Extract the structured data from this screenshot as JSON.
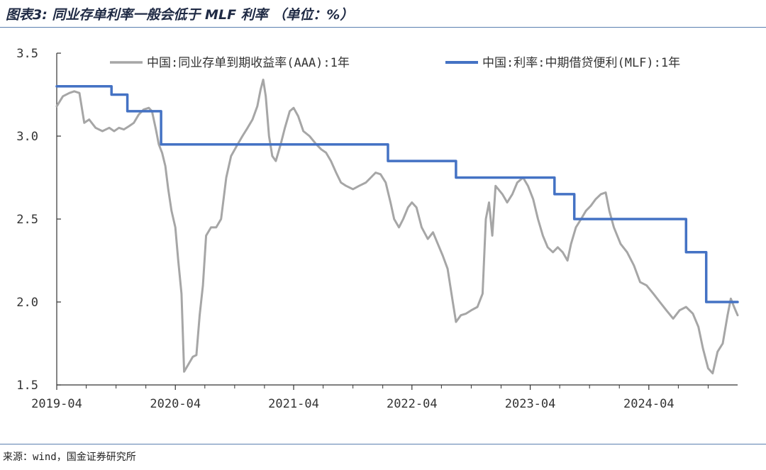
{
  "title": "图表3: 同业存单利率一般会低于 MLF 利率 （单位：%）",
  "source": "来源：wind，国金证券研究所",
  "chart_data": {
    "type": "line",
    "y_ticks": [
      "3.5",
      "3.0",
      "2.5",
      "2.0",
      "1.5"
    ],
    "x_ticks": [
      "2019-04",
      "2020-04",
      "2021-04",
      "2022-04",
      "2023-04",
      "2024-04"
    ],
    "ylim": [
      1.5,
      3.5
    ],
    "xlim": [
      "2019-04-01",
      "2024-12-31"
    ],
    "grid": false,
    "legend_position": "top",
    "series": [
      {
        "name": "中国:同业存单到期收益率(AAA):1年",
        "color": "#a6a6a6",
        "points": [
          [
            "2019-04-01",
            3.18
          ],
          [
            "2019-04-20",
            3.24
          ],
          [
            "2019-05-10",
            3.26
          ],
          [
            "2019-05-25",
            3.27
          ],
          [
            "2019-06-10",
            3.26
          ],
          [
            "2019-06-25",
            3.08
          ],
          [
            "2019-07-10",
            3.1
          ],
          [
            "2019-07-30",
            3.05
          ],
          [
            "2019-08-20",
            3.03
          ],
          [
            "2019-09-10",
            3.05
          ],
          [
            "2019-09-25",
            3.03
          ],
          [
            "2019-10-10",
            3.05
          ],
          [
            "2019-10-25",
            3.04
          ],
          [
            "2019-11-10",
            3.06
          ],
          [
            "2019-11-25",
            3.08
          ],
          [
            "2019-12-10",
            3.13
          ],
          [
            "2019-12-25",
            3.16
          ],
          [
            "2020-01-10",
            3.17
          ],
          [
            "2020-01-20",
            3.15
          ],
          [
            "2020-02-01",
            3.04
          ],
          [
            "2020-02-10",
            2.95
          ],
          [
            "2020-02-20",
            2.9
          ],
          [
            "2020-03-01",
            2.82
          ],
          [
            "2020-03-10",
            2.68
          ],
          [
            "2020-03-20",
            2.55
          ],
          [
            "2020-04-01",
            2.45
          ],
          [
            "2020-04-10",
            2.25
          ],
          [
            "2020-04-20",
            2.05
          ],
          [
            "2020-04-28",
            1.58
          ],
          [
            "2020-05-10",
            1.62
          ],
          [
            "2020-05-25",
            1.67
          ],
          [
            "2020-06-05",
            1.68
          ],
          [
            "2020-06-15",
            1.92
          ],
          [
            "2020-06-25",
            2.1
          ],
          [
            "2020-07-05",
            2.4
          ],
          [
            "2020-07-20",
            2.45
          ],
          [
            "2020-08-05",
            2.45
          ],
          [
            "2020-08-20",
            2.5
          ],
          [
            "2020-09-05",
            2.75
          ],
          [
            "2020-09-20",
            2.88
          ],
          [
            "2020-10-10",
            2.95
          ],
          [
            "2020-10-25",
            3.0
          ],
          [
            "2020-11-10",
            3.05
          ],
          [
            "2020-11-25",
            3.1
          ],
          [
            "2020-12-10",
            3.18
          ],
          [
            "2020-12-20",
            3.28
          ],
          [
            "2020-12-28",
            3.34
          ],
          [
            "2021-01-05",
            3.24
          ],
          [
            "2021-01-15",
            3.0
          ],
          [
            "2021-01-25",
            2.88
          ],
          [
            "2021-02-05",
            2.85
          ],
          [
            "2021-02-20",
            2.95
          ],
          [
            "2021-03-05",
            3.05
          ],
          [
            "2021-03-20",
            3.15
          ],
          [
            "2021-04-01",
            3.17
          ],
          [
            "2021-04-15",
            3.12
          ],
          [
            "2021-05-01",
            3.03
          ],
          [
            "2021-05-20",
            3.0
          ],
          [
            "2021-06-10",
            2.95
          ],
          [
            "2021-06-25",
            2.92
          ],
          [
            "2021-07-10",
            2.9
          ],
          [
            "2021-07-25",
            2.85
          ],
          [
            "2021-08-10",
            2.78
          ],
          [
            "2021-08-25",
            2.72
          ],
          [
            "2021-09-10",
            2.7
          ],
          [
            "2021-10-01",
            2.68
          ],
          [
            "2021-10-20",
            2.7
          ],
          [
            "2021-11-10",
            2.72
          ],
          [
            "2021-11-25",
            2.75
          ],
          [
            "2021-12-10",
            2.78
          ],
          [
            "2021-12-25",
            2.77
          ],
          [
            "2022-01-10",
            2.72
          ],
          [
            "2022-01-25",
            2.6
          ],
          [
            "2022-02-05",
            2.5
          ],
          [
            "2022-02-20",
            2.45
          ],
          [
            "2022-03-05",
            2.5
          ],
          [
            "2022-03-20",
            2.57
          ],
          [
            "2022-04-01",
            2.6
          ],
          [
            "2022-04-15",
            2.57
          ],
          [
            "2022-05-01",
            2.45
          ],
          [
            "2022-05-20",
            2.38
          ],
          [
            "2022-06-05",
            2.42
          ],
          [
            "2022-06-20",
            2.35
          ],
          [
            "2022-07-05",
            2.28
          ],
          [
            "2022-07-20",
            2.2
          ],
          [
            "2022-08-05",
            2.0
          ],
          [
            "2022-08-15",
            1.88
          ],
          [
            "2022-08-30",
            1.92
          ],
          [
            "2022-09-15",
            1.93
          ],
          [
            "2022-10-01",
            1.95
          ],
          [
            "2022-10-20",
            1.97
          ],
          [
            "2022-11-05",
            2.05
          ],
          [
            "2022-11-15",
            2.5
          ],
          [
            "2022-11-25",
            2.6
          ],
          [
            "2022-12-05",
            2.4
          ],
          [
            "2022-12-15",
            2.7
          ],
          [
            "2023-01-05",
            2.65
          ],
          [
            "2023-01-20",
            2.6
          ],
          [
            "2023-02-05",
            2.65
          ],
          [
            "2023-02-20",
            2.72
          ],
          [
            "2023-03-10",
            2.75
          ],
          [
            "2023-03-25",
            2.7
          ],
          [
            "2023-04-10",
            2.62
          ],
          [
            "2023-04-25",
            2.5
          ],
          [
            "2023-05-10",
            2.4
          ],
          [
            "2023-05-25",
            2.33
          ],
          [
            "2023-06-10",
            2.3
          ],
          [
            "2023-06-25",
            2.33
          ],
          [
            "2023-07-10",
            2.3
          ],
          [
            "2023-07-25",
            2.25
          ],
          [
            "2023-08-05",
            2.35
          ],
          [
            "2023-08-20",
            2.45
          ],
          [
            "2023-09-05",
            2.5
          ],
          [
            "2023-09-20",
            2.55
          ],
          [
            "2023-10-05",
            2.58
          ],
          [
            "2023-10-20",
            2.62
          ],
          [
            "2023-11-05",
            2.65
          ],
          [
            "2023-11-20",
            2.66
          ],
          [
            "2023-12-01",
            2.55
          ],
          [
            "2023-12-15",
            2.45
          ],
          [
            "2024-01-05",
            2.35
          ],
          [
            "2024-01-25",
            2.3
          ],
          [
            "2024-02-15",
            2.22
          ],
          [
            "2024-03-05",
            2.12
          ],
          [
            "2024-03-25",
            2.1
          ],
          [
            "2024-04-15",
            2.05
          ],
          [
            "2024-05-05",
            2.0
          ],
          [
            "2024-05-25",
            1.95
          ],
          [
            "2024-06-15",
            1.9
          ],
          [
            "2024-07-05",
            1.95
          ],
          [
            "2024-07-25",
            1.97
          ],
          [
            "2024-08-15",
            1.93
          ],
          [
            "2024-09-01",
            1.85
          ],
          [
            "2024-09-15",
            1.72
          ],
          [
            "2024-10-01",
            1.6
          ],
          [
            "2024-10-15",
            1.57
          ],
          [
            "2024-10-30",
            1.7
          ],
          [
            "2024-11-15",
            1.75
          ],
          [
            "2024-11-30",
            1.92
          ],
          [
            "2024-12-10",
            2.02
          ],
          [
            "2024-12-20",
            1.97
          ],
          [
            "2024-12-31",
            1.92
          ]
        ]
      },
      {
        "name": "中国:利率:中期借贷便利(MLF):1年",
        "color": "#4472c4",
        "points": [
          [
            "2019-04-01",
            3.3
          ],
          [
            "2019-09-17",
            3.3
          ],
          [
            "2019-09-17",
            3.25
          ],
          [
            "2019-11-05",
            3.25
          ],
          [
            "2019-11-05",
            3.15
          ],
          [
            "2020-02-17",
            3.15
          ],
          [
            "2020-02-17",
            2.95
          ],
          [
            "2022-01-17",
            2.95
          ],
          [
            "2022-01-17",
            2.85
          ],
          [
            "2022-08-15",
            2.85
          ],
          [
            "2022-08-15",
            2.75
          ],
          [
            "2023-06-15",
            2.75
          ],
          [
            "2023-06-15",
            2.65
          ],
          [
            "2023-08-15",
            2.65
          ],
          [
            "2023-08-15",
            2.5
          ],
          [
            "2024-07-25",
            2.5
          ],
          [
            "2024-07-25",
            2.3
          ],
          [
            "2024-09-25",
            2.3
          ],
          [
            "2024-09-25",
            2.0
          ],
          [
            "2024-12-31",
            2.0
          ]
        ]
      }
    ]
  }
}
